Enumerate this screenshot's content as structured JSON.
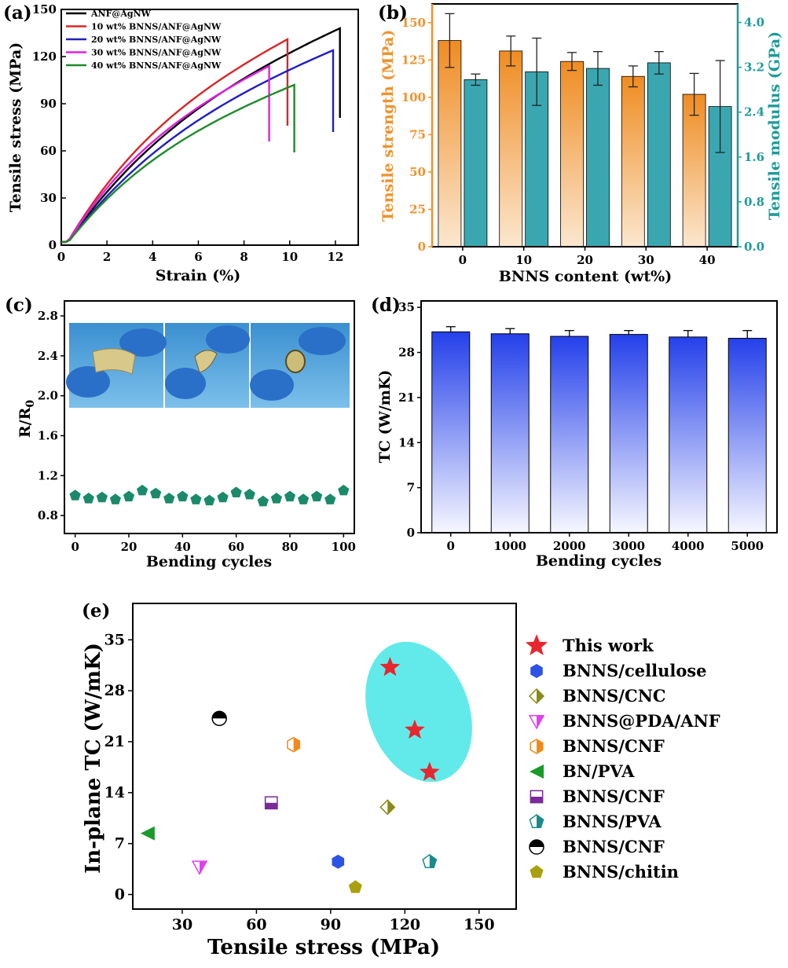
{
  "panels": {
    "a": "(a)",
    "b": "(b)",
    "c": "(c)",
    "d": "(d)",
    "e": "(e)"
  },
  "chart_data": [
    {
      "id": "a",
      "type": "line",
      "xlabel": "Strain (%)",
      "ylabel": "Tensile stress (MPa)",
      "xlim": [
        0,
        13
      ],
      "ylim": [
        0,
        150
      ],
      "xticks": [
        0,
        2,
        4,
        6,
        8,
        10,
        12
      ],
      "yticks": [
        0,
        30,
        60,
        90,
        120,
        150
      ],
      "legend_position": "top-left",
      "series": [
        {
          "name": "ANF@AgNW",
          "color": "#000000",
          "break_strain": 12.2,
          "peak": 138,
          "end": 81
        },
        {
          "name": "10 wt% BNNS/ANF@AgNW",
          "color": "#d62728",
          "break_strain": 9.9,
          "peak": 131,
          "end": 76
        },
        {
          "name": "20 wt% BNNS/ANF@AgNW",
          "color": "#1f1fc0",
          "break_strain": 11.9,
          "peak": 124,
          "end": 72
        },
        {
          "name": "30 wt% BNNS/ANF@AgNW",
          "color": "#e020e0",
          "break_strain": 9.1,
          "peak": 114,
          "end": 66
        },
        {
          "name": "40 wt% BNNS/ANF@AgNW",
          "color": "#1f8a2a",
          "break_strain": 10.2,
          "peak": 102,
          "end": 59
        }
      ]
    },
    {
      "id": "b",
      "type": "bar",
      "xlabel": "BNNS content (wt%)",
      "categories": [
        "0",
        "10",
        "20",
        "30",
        "40"
      ],
      "ylabel": "Tensile strength (MPa)",
      "ylim": [
        0,
        162.5
      ],
      "yticks": [
        "0",
        "25",
        "50",
        "75",
        "100",
        "125",
        "150"
      ],
      "y2label": "Tensile modulus (GPa)",
      "y2lim": [
        0,
        4.33
      ],
      "y2ticks": [
        "0.0",
        "0.8",
        "1.6",
        "2.4",
        "3.2",
        "4.0"
      ],
      "colors": {
        "strength": "#f0922e",
        "modulus": "#3aa7b0",
        "left_axis": "#f0922e",
        "right_axis": "#1f9a9a"
      },
      "series": [
        {
          "name": "Tensile strength",
          "values": [
            138,
            131,
            124,
            114,
            102
          ],
          "errors": [
            18,
            10,
            6,
            7,
            14
          ]
        },
        {
          "name": "Tensile modulus",
          "values": [
            2.98,
            3.12,
            3.18,
            3.28,
            2.5
          ],
          "errors": [
            0.1,
            0.6,
            0.3,
            0.2,
            0.82
          ]
        }
      ]
    },
    {
      "id": "c",
      "type": "scatter",
      "xlabel": "Bending cycles",
      "ylabel": "R/R",
      "ylabel_subscript": "0",
      "xlim": [
        -4,
        104
      ],
      "ylim": [
        0.62,
        2.95
      ],
      "xticks": [
        "0",
        "20",
        "40",
        "60",
        "80",
        "100"
      ],
      "yticks": [
        "0.8",
        "1.2",
        "1.6",
        "2.0",
        "2.4",
        "2.8"
      ],
      "marker_color": "#1a8a6a",
      "x": [
        0,
        5,
        10,
        15,
        20,
        25,
        30,
        35,
        40,
        45,
        50,
        55,
        60,
        65,
        70,
        75,
        80,
        85,
        90,
        95,
        100
      ],
      "y": [
        1.0,
        0.97,
        0.98,
        0.96,
        0.99,
        1.05,
        1.02,
        0.97,
        0.99,
        0.96,
        0.95,
        0.98,
        1.03,
        1.01,
        0.94,
        0.97,
        0.99,
        0.96,
        0.99,
        0.96,
        1.05
      ]
    },
    {
      "id": "d",
      "type": "bar",
      "xlabel": "Bending cycles",
      "ylabel": "TC (W/mK)",
      "categories": [
        "0",
        "1000",
        "2000",
        "3000",
        "4000",
        "5000"
      ],
      "values": [
        31.2,
        30.9,
        30.5,
        30.8,
        30.4,
        30.2
      ],
      "errors": [
        0.8,
        0.8,
        0.9,
        0.6,
        1.0,
        1.2
      ],
      "ylim": [
        0,
        36
      ],
      "yticks": [
        "0",
        "7",
        "14",
        "21",
        "28",
        "35"
      ],
      "bar_color": "#2f47e8"
    },
    {
      "id": "e",
      "type": "scatter",
      "xlabel": "Tensile stress (MPa)",
      "ylabel": "In-plane TC (W/mK)",
      "xlim": [
        10,
        165
      ],
      "ylim": [
        -2,
        40
      ],
      "xticks": [
        "30",
        "60",
        "90",
        "120",
        "150"
      ],
      "yticks": [
        "0",
        "7",
        "14",
        "21",
        "28",
        "35"
      ],
      "highlight_color": "#62eaea",
      "series": [
        {
          "name": "This work",
          "marker": "star",
          "color": "#e8262e",
          "points": [
            [
              114,
              31.2
            ],
            [
              124,
              22.6
            ],
            [
              130,
              16.8
            ]
          ]
        },
        {
          "name": "BNNS/cellulose",
          "marker": "hexagon",
          "color": "#2d52e6",
          "points": [
            [
              93,
              4.5
            ]
          ]
        },
        {
          "name": "BNNS/CNC",
          "marker": "diamond-half",
          "color": "#8a8a18",
          "points": [
            [
              113,
              12.0
            ]
          ]
        },
        {
          "name": "BNNS@PDA/ANF",
          "marker": "triangle-down-half",
          "color": "#e040ef",
          "points": [
            [
              37,
              3.8
            ]
          ]
        },
        {
          "name": "BNNS/CNF",
          "marker": "hexagon-half",
          "color": "#f08a1c",
          "points": [
            [
              75,
              20.6
            ]
          ]
        },
        {
          "name": "BN/PVA",
          "marker": "triangle-left",
          "color": "#1a9a2a",
          "points": [
            [
              16,
              8.4
            ]
          ]
        },
        {
          "name": "BNNS/CNF",
          "marker": "square-half",
          "color": "#7a2a9a",
          "points": [
            [
              66,
              12.6
            ]
          ]
        },
        {
          "name": "BNNS/PVA",
          "marker": "pentagon-half",
          "color": "#1a8a8a",
          "points": [
            [
              130,
              4.5
            ]
          ]
        },
        {
          "name": "BNNS/CNF",
          "marker": "circle-half",
          "color": "#000000",
          "points": [
            [
              45,
              24.2
            ]
          ]
        },
        {
          "name": "BNNS/chitin",
          "marker": "pentagon",
          "color": "#a8a010",
          "points": [
            [
              100,
              1.0
            ]
          ]
        }
      ]
    }
  ]
}
